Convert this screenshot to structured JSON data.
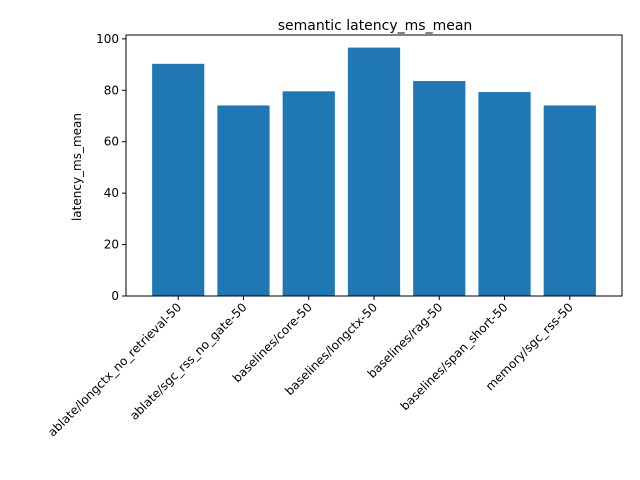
{
  "chart_data": {
    "type": "bar",
    "title": "semantic latency_ms_mean",
    "xlabel": "",
    "ylabel": "latency_ms_mean",
    "categories": [
      "ablate/longctx_no_retrieval-50",
      "ablate/sgc_rss_no_gate-50",
      "baselines/core-50",
      "baselines/longctx-50",
      "baselines/rag-50",
      "baselines/span_short-50",
      "memory/sgc_rss-50"
    ],
    "values": [
      90.3,
      74.1,
      79.6,
      96.6,
      83.6,
      79.3,
      74.1
    ],
    "ylim": [
      0,
      101.5
    ],
    "yticks": [
      0,
      20,
      40,
      60,
      80,
      100
    ],
    "bar_color": "#1f77b4",
    "grid": false,
    "legend": "none"
  }
}
